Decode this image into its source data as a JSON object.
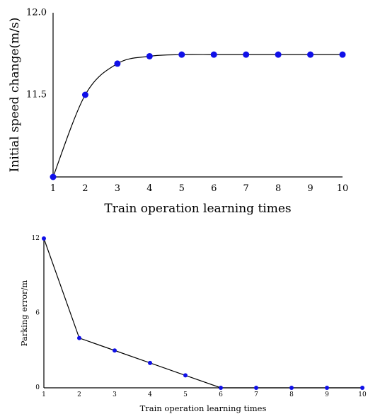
{
  "chart_data": [
    {
      "type": "line",
      "xlabel": "Train operation learning times",
      "ylabel": "Initial speed change(m/s)",
      "xlim": [
        1,
        10
      ],
      "ylim": [
        11.0,
        12.0
      ],
      "x_ticks": [
        "1",
        "2",
        "3",
        "4",
        "5",
        "6",
        "7",
        "8",
        "9",
        "10"
      ],
      "y_ticks": [
        "11.5",
        "12.0"
      ],
      "grid": false,
      "smooth": true,
      "marker_color": "#1010e8",
      "line_color": "#000000",
      "x": [
        1,
        2,
        3,
        4,
        5,
        6,
        7,
        8,
        9,
        10
      ],
      "y": [
        11.0,
        11.5,
        11.69,
        11.735,
        11.745,
        11.745,
        11.745,
        11.745,
        11.745,
        11.745
      ]
    },
    {
      "type": "line",
      "xlabel": "Train operation learning times",
      "ylabel": "Parking error/m",
      "xlim": [
        1,
        10
      ],
      "ylim": [
        0,
        12
      ],
      "x_ticks": [
        "1",
        "2",
        "3",
        "4",
        "5",
        "6",
        "7",
        "8",
        "9",
        "10"
      ],
      "y_ticks": [
        "0",
        "6",
        "12"
      ],
      "grid": false,
      "smooth": false,
      "marker_color": "#1010e8",
      "line_color": "#000000",
      "x": [
        1,
        2,
        3,
        4,
        5,
        6,
        7,
        8,
        9,
        10
      ],
      "y": [
        12,
        4,
        3,
        2,
        1,
        0,
        0,
        0,
        0,
        0
      ]
    }
  ]
}
